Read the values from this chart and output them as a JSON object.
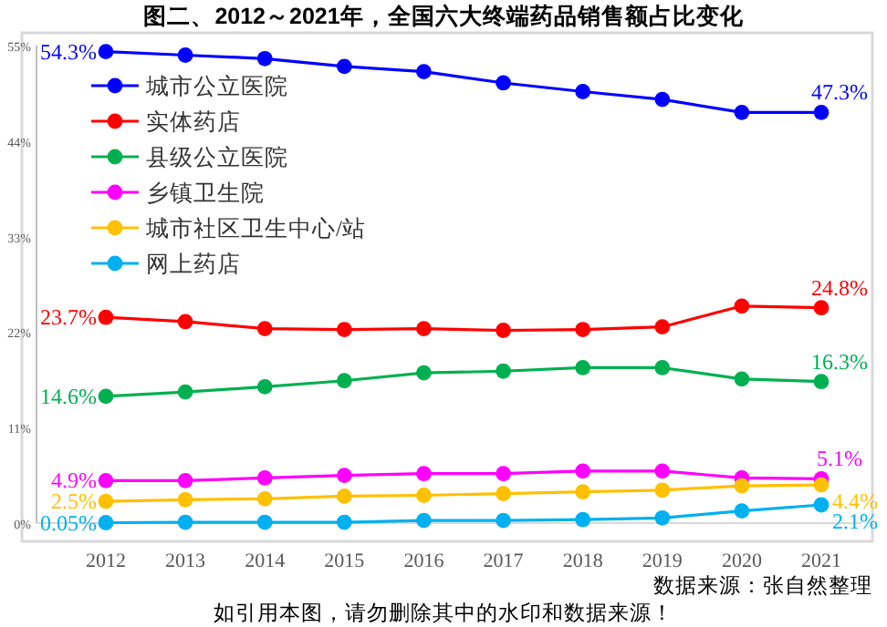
{
  "chart_data": {
    "type": "line",
    "title": "图二、2012～2021年，全国六大终端药品销售额占比变化",
    "categories": [
      "2012",
      "2013",
      "2014",
      "2015",
      "2016",
      "2017",
      "2018",
      "2019",
      "2020",
      "2021"
    ],
    "series": [
      {
        "name": "城市公立医院",
        "color": "#0000ff",
        "values": [
          54.3,
          53.9,
          53.5,
          52.6,
          52.0,
          50.7,
          49.7,
          48.8,
          47.3,
          47.3
        ],
        "value_labels": [
          "54.3%",
          null,
          null,
          null,
          null,
          null,
          null,
          null,
          null,
          "47.3%"
        ]
      },
      {
        "name": "实体药店",
        "color": "#ff0000",
        "values": [
          23.7,
          23.2,
          22.4,
          22.3,
          22.4,
          22.2,
          22.3,
          22.6,
          25.0,
          24.8
        ],
        "value_labels": [
          "23.7%",
          null,
          null,
          null,
          null,
          null,
          null,
          null,
          null,
          "24.8%"
        ]
      },
      {
        "name": "县级公立医院",
        "color": "#00b050",
        "values": [
          14.6,
          15.1,
          15.7,
          16.4,
          17.3,
          17.5,
          17.9,
          17.9,
          16.6,
          16.3
        ],
        "value_labels": [
          "14.6%",
          null,
          null,
          null,
          null,
          null,
          null,
          null,
          null,
          "16.3%"
        ]
      },
      {
        "name": "乡镇卫生院",
        "color": "#ff00ff",
        "values": [
          4.9,
          4.9,
          5.2,
          5.5,
          5.7,
          5.7,
          6.0,
          6.0,
          5.2,
          5.1
        ],
        "value_labels": [
          "4.9%",
          null,
          null,
          null,
          null,
          null,
          null,
          null,
          null,
          "5.1%"
        ]
      },
      {
        "name": "城市社区卫生中心/站",
        "color": "#ffc000",
        "values": [
          2.5,
          2.7,
          2.8,
          3.1,
          3.2,
          3.4,
          3.6,
          3.8,
          4.3,
          4.4
        ],
        "value_labels": [
          "2.5%",
          null,
          null,
          null,
          null,
          null,
          null,
          null,
          null,
          "4.4%"
        ]
      },
      {
        "name": "网上药店",
        "color": "#00b0f0",
        "values": [
          0.05,
          0.1,
          0.1,
          0.1,
          0.3,
          0.3,
          0.4,
          0.6,
          1.4,
          2.1
        ],
        "value_labels": [
          "0.05%",
          null,
          null,
          null,
          null,
          null,
          null,
          null,
          null,
          "2.1%"
        ]
      }
    ],
    "ylim": [
      0,
      55
    ],
    "yticks": [
      {
        "value": 0,
        "label": "0%"
      },
      {
        "value": 11,
        "label": "11%"
      },
      {
        "value": 22,
        "label": "22%"
      },
      {
        "value": 33,
        "label": "33%"
      },
      {
        "value": 44,
        "label": "44%"
      },
      {
        "value": 55,
        "label": "55%"
      }
    ],
    "marker": "circle",
    "legend": "top left",
    "grid": false,
    "annotations": [
      "数据来源：张自然整理",
      "如引用本图，请勿删除其中的水印和数据来源！"
    ]
  }
}
